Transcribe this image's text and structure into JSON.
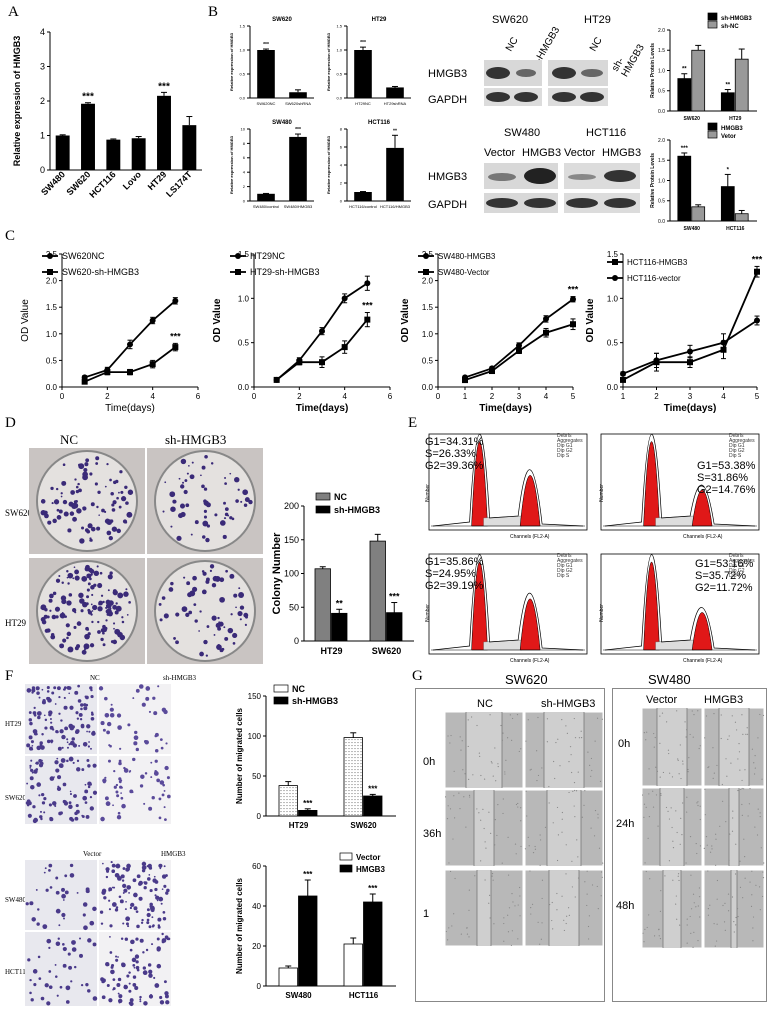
{
  "panel_labels": {
    "A": "A",
    "B": "B",
    "C": "C",
    "D": "D",
    "E": "E",
    "F": "F",
    "G": "G"
  },
  "chart_data": [
    {
      "id": "A",
      "type": "bar",
      "ylabel": "Relative expression of HMGB3",
      "categories": [
        "SW480",
        "SW620",
        "HCT116",
        "Lovo",
        "HT29",
        "LS174T"
      ],
      "values": [
        1.0,
        1.92,
        0.88,
        0.92,
        2.15,
        1.3
      ],
      "errors": [
        0.02,
        0.03,
        0.02,
        0.05,
        0.1,
        0.25
      ],
      "stars": [
        "",
        "***",
        "",
        "",
        "***",
        ""
      ],
      "ylim": [
        0,
        4
      ],
      "yticks": [
        "0",
        "1",
        "2",
        "3",
        "4"
      ]
    },
    {
      "id": "B1",
      "type": "bar",
      "title": "SW620",
      "ylabel": "Relative expression of HMGB3",
      "categories": [
        "SW620NC",
        "SW620shRNA"
      ],
      "values": [
        1.0,
        0.12
      ],
      "errors": [
        0.02,
        0.05
      ],
      "stars": [
        "***",
        ""
      ],
      "ylim": [
        0,
        1.5
      ],
      "yticks": [
        "0.0",
        "0.5",
        "1.0",
        "1.5"
      ]
    },
    {
      "id": "B2",
      "type": "bar",
      "title": "HT29",
      "ylabel": "Relative expression of HMGB3",
      "categories": [
        "HT29NC",
        "HT29shRNA"
      ],
      "values": [
        1.0,
        0.22
      ],
      "errors": [
        0.06,
        0.02
      ],
      "stars": [
        "***",
        ""
      ],
      "ylim": [
        0,
        1.5
      ],
      "yticks": [
        "0.0",
        "0.5",
        "1.0",
        "1.5"
      ]
    },
    {
      "id": "B3",
      "type": "bar",
      "title": "SW480",
      "ylabel": "Relative expression of HMGB3",
      "categories": [
        "SW480/control",
        "SW480/HMGB3"
      ],
      "values": [
        1.0,
        8.9
      ],
      "errors": [
        0.05,
        0.4
      ],
      "stars": [
        "",
        "***"
      ],
      "ylim": [
        0,
        10
      ],
      "yticks": [
        "0",
        "2",
        "4",
        "6",
        "8",
        "10"
      ]
    },
    {
      "id": "B4",
      "type": "bar",
      "title": "HCT116",
      "ylabel": "Relative expression of HMGB3",
      "categories": [
        "HCT116/control",
        "HCT116/HMGB3"
      ],
      "values": [
        1.0,
        5.9
      ],
      "errors": [
        0.05,
        1.4
      ],
      "stars": [
        "",
        "**"
      ],
      "ylim": [
        0,
        8
      ],
      "yticks": [
        "0",
        "2",
        "4",
        "6",
        "8"
      ]
    },
    {
      "id": "B5",
      "type": "bar",
      "ylabel": "Relative Protein Levels",
      "categories": [
        "SW620",
        "HT29"
      ],
      "series": [
        {
          "name": "sh-HMGB3",
          "color": "#000000",
          "values": [
            0.8,
            0.45
          ],
          "errors": [
            0.12,
            0.08
          ]
        },
        {
          "name": "sh-NC",
          "color": "#999999",
          "values": [
            1.5,
            1.28
          ],
          "errors": [
            0.12,
            0.25
          ]
        }
      ],
      "stars": [
        "**",
        "**"
      ],
      "ylim": [
        0,
        2.0
      ],
      "yticks": [
        "0.0",
        "0.5",
        "1.0",
        "1.5",
        "2.0"
      ]
    },
    {
      "id": "B6",
      "type": "bar",
      "ylabel": "Relative Protein Levels",
      "categories": [
        "SW480",
        "HCT116"
      ],
      "series": [
        {
          "name": "HMGB3",
          "color": "#000000",
          "values": [
            1.6,
            0.85
          ],
          "errors": [
            0.08,
            0.3
          ]
        },
        {
          "name": "Vetor",
          "color": "#999999",
          "values": [
            0.35,
            0.18
          ],
          "errors": [
            0.05,
            0.08
          ]
        }
      ],
      "stars": [
        "***",
        "*"
      ],
      "ylim": [
        0,
        2.0
      ],
      "yticks": [
        "0.0",
        "0.5",
        "1.0",
        "1.5",
        "2.0"
      ]
    },
    {
      "id": "C1",
      "type": "line",
      "xlabel": "Time(days)",
      "ylabel": "OD Value",
      "xlim": [
        0,
        6
      ],
      "ylim": [
        0,
        2.5
      ],
      "xticks": [
        "0",
        "2",
        "4",
        "6"
      ],
      "yticks": [
        "0.0",
        "0.5",
        "1.0",
        "1.5",
        "2.0",
        "2.5"
      ],
      "series": [
        {
          "name": "SW620NC",
          "marker": "circle",
          "x": [
            1,
            2,
            3,
            4,
            5
          ],
          "y": [
            0.18,
            0.32,
            0.8,
            1.25,
            1.62
          ],
          "err": [
            0.03,
            0.05,
            0.08,
            0.06,
            0.06
          ]
        },
        {
          "name": "SW620-sh-HMGB3",
          "marker": "square",
          "x": [
            1,
            2,
            3,
            4,
            5
          ],
          "y": [
            0.1,
            0.28,
            0.28,
            0.43,
            0.75
          ],
          "err": [
            0.02,
            0.05,
            0.05,
            0.07,
            0.07
          ]
        }
      ],
      "stars": "***"
    },
    {
      "id": "C2",
      "type": "line",
      "xlabel": "Time(days)",
      "ylabel": "OD Value",
      "xlim": [
        0,
        6
      ],
      "ylim": [
        0,
        1.5
      ],
      "xticks": [
        "0",
        "2",
        "4",
        "6"
      ],
      "yticks": [
        "0.0",
        "0.5",
        "1.0",
        "1.5"
      ],
      "series": [
        {
          "name": "HT29NC",
          "marker": "circle",
          "x": [
            1,
            2,
            3,
            4,
            5
          ],
          "y": [
            0.08,
            0.3,
            0.63,
            1.0,
            1.17
          ],
          "err": [
            0.02,
            0.03,
            0.04,
            0.05,
            0.08
          ]
        },
        {
          "name": "HT29-sh-HMGB3",
          "marker": "square",
          "x": [
            1,
            2,
            3,
            4,
            5
          ],
          "y": [
            0.08,
            0.28,
            0.28,
            0.45,
            0.76
          ],
          "err": [
            0.02,
            0.03,
            0.06,
            0.07,
            0.08
          ]
        }
      ],
      "stars": "***"
    },
    {
      "id": "C3",
      "type": "line",
      "xlabel": "Time(days)",
      "ylabel": "OD Value",
      "xlim": [
        0,
        5
      ],
      "ylim": [
        0,
        2.5
      ],
      "xticks": [
        "0",
        "1",
        "2",
        "3",
        "4",
        "5"
      ],
      "yticks": [
        "0.0",
        "0.5",
        "1.0",
        "1.5",
        "2.0",
        "2.5"
      ],
      "series": [
        {
          "name": "SW480-HMGB3",
          "marker": "circle",
          "x": [
            1,
            2,
            3,
            4,
            5
          ],
          "y": [
            0.18,
            0.35,
            0.78,
            1.28,
            1.65
          ],
          "err": [
            0.02,
            0.03,
            0.05,
            0.06,
            0.05
          ]
        },
        {
          "name": "SW480-Vector",
          "marker": "square",
          "x": [
            1,
            2,
            3,
            4,
            5
          ],
          "y": [
            0.13,
            0.3,
            0.68,
            1.02,
            1.18
          ],
          "err": [
            0.02,
            0.03,
            0.05,
            0.08,
            0.1
          ]
        }
      ],
      "stars": "***"
    },
    {
      "id": "C4",
      "type": "line",
      "xlabel": "Time(days)",
      "ylabel": "OD Value",
      "xlim": [
        1,
        5
      ],
      "ylim": [
        0,
        1.5
      ],
      "xticks": [
        "1",
        "2",
        "3",
        "4",
        "5"
      ],
      "yticks": [
        "0.0",
        "0.5",
        "1.0",
        "1.5"
      ],
      "series": [
        {
          "name": "HCT116-HMGB3",
          "marker": "square",
          "x": [
            1,
            2,
            3,
            4,
            5
          ],
          "y": [
            0.08,
            0.28,
            0.28,
            0.42,
            1.3
          ],
          "err": [
            0.02,
            0.1,
            0.06,
            0.1,
            0.06
          ]
        },
        {
          "name": "HCT116-vector",
          "marker": "circle",
          "x": [
            1,
            2,
            3,
            4,
            5
          ],
          "y": [
            0.15,
            0.3,
            0.4,
            0.5,
            0.75
          ],
          "err": [
            0.02,
            0.08,
            0.07,
            0.1,
            0.05
          ]
        }
      ],
      "stars": "***"
    },
    {
      "id": "D",
      "type": "bar",
      "ylabel": "Colony Number",
      "categories": [
        "HT29",
        "SW620"
      ],
      "series": [
        {
          "name": "NC",
          "color": "#808080",
          "values": [
            107,
            148
          ],
          "errors": [
            3,
            10
          ]
        },
        {
          "name": "sh-HMGB3",
          "color": "#000000",
          "values": [
            41,
            42
          ],
          "errors": [
            6,
            15
          ]
        }
      ],
      "stars": [
        "**",
        "***"
      ],
      "ylim": [
        0,
        200
      ],
      "yticks": [
        "0",
        "50",
        "100",
        "150",
        "200"
      ]
    },
    {
      "id": "F1",
      "type": "bar",
      "ylabel": "Number of migrated cells",
      "categories": [
        "HT29",
        "SW620"
      ],
      "series": [
        {
          "name": "NC",
          "color": "#ffffff",
          "values": [
            38,
            98
          ],
          "errors": [
            5,
            6
          ]
        },
        {
          "name": "sh-HMGB3",
          "color": "#000000",
          "values": [
            7,
            25
          ],
          "errors": [
            2,
            2
          ]
        }
      ],
      "stars": [
        "***",
        "***"
      ],
      "ylim": [
        0,
        150
      ],
      "yticks": [
        "0",
        "50",
        "100",
        "150"
      ]
    },
    {
      "id": "F2",
      "type": "bar",
      "ylabel": "Number of migrated cells",
      "categories": [
        "SW480",
        "HCT116"
      ],
      "series": [
        {
          "name": "Vector",
          "color": "#ffffff",
          "values": [
            9,
            21
          ],
          "errors": [
            1,
            3
          ]
        },
        {
          "name": "HMGB3",
          "color": "#000000",
          "values": [
            45,
            42
          ],
          "errors": [
            8,
            4
          ]
        }
      ],
      "stars": [
        "***",
        "***"
      ],
      "ylim": [
        0,
        60
      ],
      "yticks": [
        "0",
        "20",
        "40",
        "60"
      ]
    }
  ],
  "western": {
    "top": {
      "col1": "SW620",
      "col2": "HT29",
      "lanes": [
        "NC",
        "sh-HMGB3",
        "NC",
        "sh-HMGB3"
      ],
      "rows": [
        "HMGB3",
        "GAPDH"
      ]
    },
    "bottom": {
      "col1": "SW480",
      "col2": "HCT116",
      "lanes": [
        "Vector",
        "HMGB3",
        "Vector",
        "HMGB3"
      ],
      "rows": [
        "HMGB3",
        "GAPDH"
      ]
    }
  },
  "colony": {
    "cols": [
      "NC",
      "sh-HMGB3"
    ],
    "rows": [
      "SW620",
      "HT29"
    ]
  },
  "flow": {
    "cells": [
      {
        "g1": "G1=34.31%",
        "s": "S=26.33%",
        "g2": "G2=39.36%"
      },
      {
        "g1": "G1=53.38%",
        "s": "S=31.86%",
        "g2": "G2=14.76%"
      },
      {
        "g1": "G1=35.86%",
        "s": "S=24.95%",
        "g2": "G2=39.19%"
      },
      {
        "g1": "G1=53.16%",
        "s": "S=35.72%",
        "g2": "G2=11.72%"
      }
    ],
    "xlabel": "Channels (FL2-A)",
    "ylabel": "Number",
    "legend": [
      "Debris",
      "Aggregates",
      "Dip G1",
      "Dip G2",
      "Dip S"
    ]
  },
  "transwell": {
    "top": {
      "cols": [
        "NC",
        "sh-HMGB3"
      ],
      "rows": [
        "HT29",
        "SW620"
      ]
    },
    "bottom": {
      "cols": [
        "Vector",
        "HMGB3"
      ],
      "rows": [
        "SW480",
        "HCT116"
      ]
    }
  },
  "wound": {
    "left": {
      "title": "SW620",
      "cols": [
        "NC",
        "sh-HMGB3"
      ],
      "rows": [
        "0h",
        "36h",
        "1"
      ]
    },
    "right": {
      "title": "SW480",
      "cols": [
        "Vector",
        "HMGB3"
      ],
      "rows": [
        "0h",
        "24h",
        "48h"
      ]
    }
  }
}
